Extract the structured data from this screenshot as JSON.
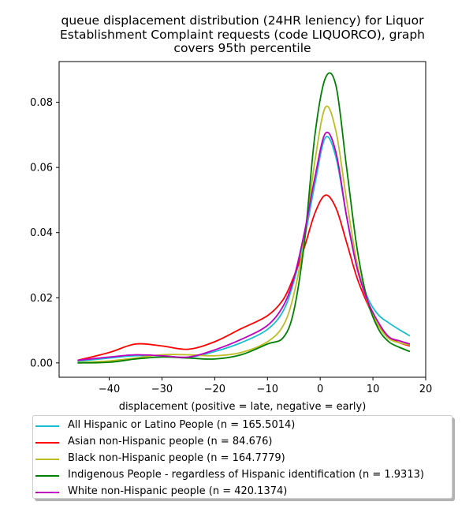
{
  "chart_data": {
    "type": "line",
    "title_lines": [
      "queue displacement distribution (24HR leniency) for Liquor",
      "Establishment Complaint  requests (code LIQUORCO), graph",
      "covers 95th percentile"
    ],
    "xlabel": "displacement (positive = late, negative = early)",
    "ylabel": "",
    "xlim": [
      -49.5,
      20
    ],
    "ylim": [
      -0.0044,
      0.0925
    ],
    "xticks": [
      -40,
      -30,
      -20,
      -10,
      0,
      10,
      20
    ],
    "xtick_labels": [
      "−40",
      "−30",
      "−20",
      "−10",
      "0",
      "10",
      "20"
    ],
    "yticks": [
      0.0,
      0.02,
      0.04,
      0.06,
      0.08
    ],
    "ytick_labels": [
      "0.00",
      "0.02",
      "0.04",
      "0.06",
      "0.08"
    ],
    "grid": false,
    "legend_position": "below",
    "x": [
      -46,
      -40,
      -35,
      -30,
      -25,
      -20,
      -15,
      -10,
      -7,
      -5,
      -3,
      -1,
      1,
      3,
      5,
      7,
      9,
      11,
      13,
      15,
      17
    ],
    "series": [
      {
        "name": "All Hispanic or Latino People (n = 165.5014)",
        "color": "#17becf",
        "values": [
          0.0005,
          0.0015,
          0.0022,
          0.0022,
          0.0017,
          0.0035,
          0.0062,
          0.0103,
          0.016,
          0.025,
          0.038,
          0.055,
          0.0692,
          0.063,
          0.045,
          0.03,
          0.02,
          0.0148,
          0.0123,
          0.0102,
          0.0083
        ]
      },
      {
        "name": "Asian non-Hispanic people (n = 84.676)",
        "color": "#ff0000",
        "values": [
          0.0008,
          0.0032,
          0.0058,
          0.0052,
          0.0042,
          0.0065,
          0.0105,
          0.0145,
          0.0195,
          0.0265,
          0.0355,
          0.046,
          0.0515,
          0.0475,
          0.037,
          0.026,
          0.018,
          0.0115,
          0.008,
          0.0062,
          0.0052
        ]
      },
      {
        "name": "Black non-Hispanic people (n = 164.7779)",
        "color": "#bcbd22",
        "values": [
          0.0001,
          0.0006,
          0.0015,
          0.0025,
          0.0025,
          0.0022,
          0.0032,
          0.0065,
          0.0115,
          0.021,
          0.038,
          0.062,
          0.0785,
          0.071,
          0.05,
          0.0305,
          0.0185,
          0.0115,
          0.0075,
          0.0062,
          0.0055
        ]
      },
      {
        "name": "Indigenous People - regardless of Hispanic identification (n = 1.9313)",
        "color": "#008000",
        "values": [
          0.0,
          0.0002,
          0.0012,
          0.0018,
          0.0015,
          0.0012,
          0.0025,
          0.0058,
          0.0078,
          0.016,
          0.037,
          0.07,
          0.0875,
          0.085,
          0.06,
          0.035,
          0.019,
          0.0105,
          0.0065,
          0.0048,
          0.0035
        ]
      },
      {
        "name": "White non-Hispanic people (n = 420.1374)",
        "color": "#bf00bf",
        "values": [
          0.0008,
          0.0018,
          0.0025,
          0.0022,
          0.0018,
          0.004,
          0.0072,
          0.0115,
          0.0175,
          0.026,
          0.04,
          0.057,
          0.0705,
          0.0645,
          0.045,
          0.029,
          0.019,
          0.0125,
          0.008,
          0.0068,
          0.0058
        ]
      }
    ]
  }
}
